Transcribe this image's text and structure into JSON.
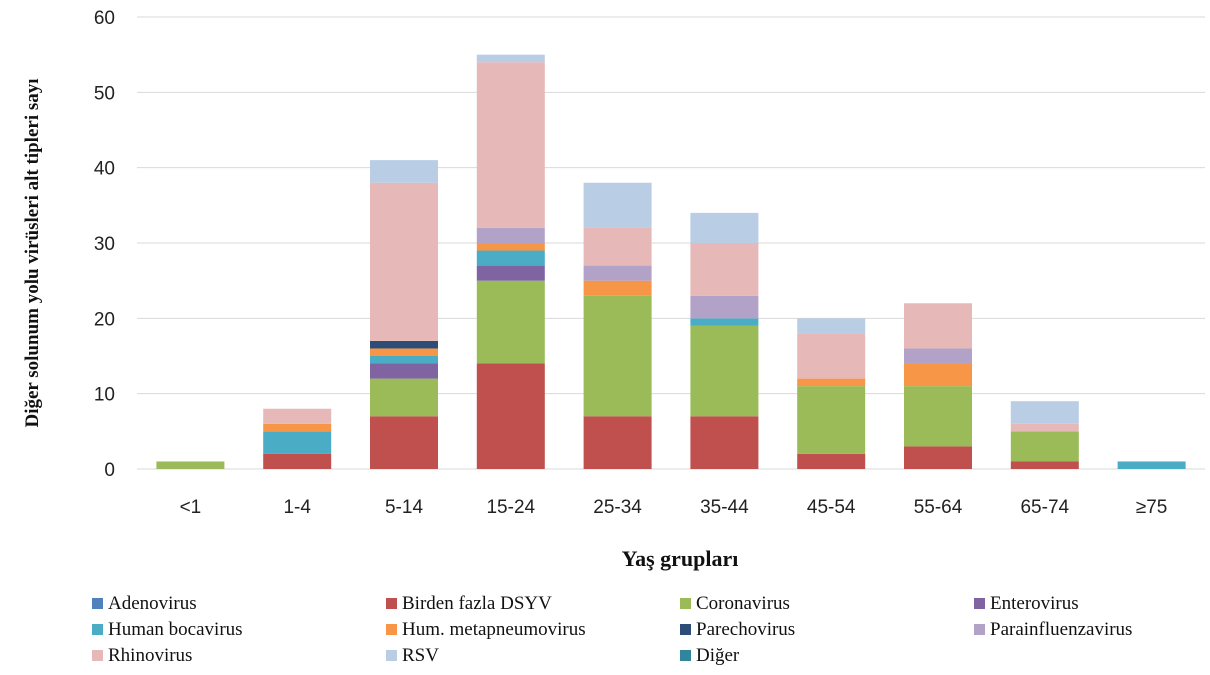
{
  "chart_data": {
    "type": "bar",
    "stacked": true,
    "categories": [
      "<1",
      "1-4",
      "5-14",
      "15-24",
      "25-34",
      "35-44",
      "45-54",
      "55-64",
      "65-74",
      "≥75"
    ],
    "xlabel": "Yaş grupları",
    "ylabel": "Diğer solunum yolu virüsleri alt tipleri sayı",
    "ylim": [
      0,
      60
    ],
    "yticks": [
      0,
      10,
      20,
      30,
      40,
      50,
      60
    ],
    "grid": true,
    "legend_position": "bottom",
    "series": [
      {
        "name": "Adenovirus",
        "color": "#4f81bd",
        "values": [
          0,
          0,
          0,
          0,
          0,
          0,
          0,
          0,
          0,
          0
        ]
      },
      {
        "name": "Birden fazla DSYV",
        "color": "#c0504d",
        "values": [
          0,
          2,
          7,
          14,
          7,
          7,
          2,
          3,
          1,
          0
        ]
      },
      {
        "name": "Coronavirus",
        "color": "#9bbb59",
        "values": [
          1,
          0,
          5,
          11,
          16,
          12,
          9,
          8,
          4,
          0
        ]
      },
      {
        "name": "Enterovirus",
        "color": "#8064a2",
        "values": [
          0,
          0,
          2,
          2,
          0,
          0,
          0,
          0,
          0,
          0
        ]
      },
      {
        "name": "Human bocavirus",
        "color": "#4bacc6",
        "values": [
          0,
          3,
          1,
          2,
          0,
          1,
          0,
          0,
          0,
          1
        ]
      },
      {
        "name": "Hum. metapneumovirus",
        "color": "#f79646",
        "values": [
          0,
          1,
          1,
          1,
          2,
          0,
          1,
          3,
          0,
          0
        ]
      },
      {
        "name": "Parechovirus",
        "color": "#2c4d75",
        "values": [
          0,
          0,
          1,
          0,
          0,
          0,
          0,
          0,
          0,
          0
        ]
      },
      {
        "name": "Parainfluenzavirus",
        "color": "#b3a2c7",
        "values": [
          0,
          0,
          0,
          2,
          2,
          3,
          0,
          2,
          0,
          0
        ]
      },
      {
        "name": "Rhinovirus",
        "color": "#e6b9b8",
        "values": [
          0,
          2,
          21,
          22,
          5,
          7,
          6,
          6,
          1,
          0
        ]
      },
      {
        "name": "RSV",
        "color": "#b9cde5",
        "values": [
          0,
          0,
          3,
          1,
          6,
          4,
          2,
          0,
          3,
          0
        ]
      },
      {
        "name": "Diğer",
        "color": "#31859c",
        "values": [
          0,
          0,
          0,
          0,
          0,
          0,
          0,
          0,
          0,
          0
        ]
      }
    ]
  }
}
